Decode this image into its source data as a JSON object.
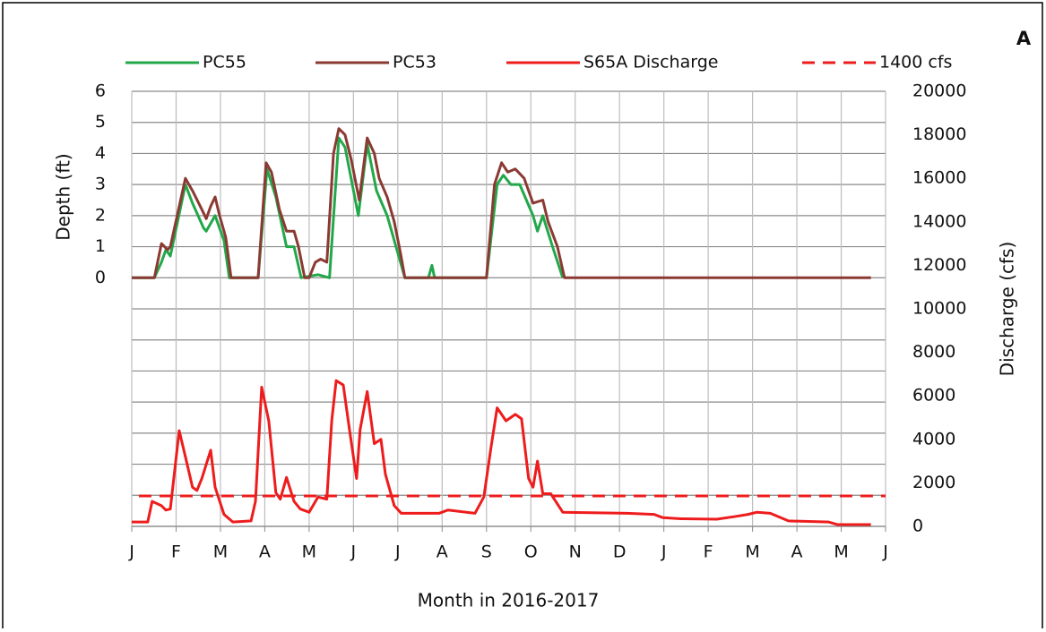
{
  "chart_data": {
    "type": "line",
    "panel_label": "A",
    "xlabel": "Month in 2016-2017",
    "ylabel": "Depth (ft)",
    "y2label": "Discharge (cfs)",
    "xlim": [
      0,
      17
    ],
    "xticks": [
      {
        "value": 0,
        "label": "J"
      },
      {
        "value": 1,
        "label": "F"
      },
      {
        "value": 2,
        "label": "M"
      },
      {
        "value": 3,
        "label": "A"
      },
      {
        "value": 4,
        "label": "M"
      },
      {
        "value": 5,
        "label": "J"
      },
      {
        "value": 6,
        "label": "J"
      },
      {
        "value": 7,
        "label": "A"
      },
      {
        "value": 8,
        "label": "S"
      },
      {
        "value": 9,
        "label": "O"
      },
      {
        "value": 10,
        "label": "N"
      },
      {
        "value": 11,
        "label": "D"
      },
      {
        "value": 12,
        "label": "J"
      },
      {
        "value": 13,
        "label": "F"
      },
      {
        "value": 14,
        "label": "M"
      },
      {
        "value": 15,
        "label": "A"
      },
      {
        "value": 16,
        "label": "M"
      },
      {
        "value": 17,
        "label": "J"
      }
    ],
    "ylim": [
      -8,
      6
    ],
    "yticks": [
      0,
      1,
      2,
      3,
      4,
      5,
      6
    ],
    "ygrid": [
      -8,
      -7,
      -6,
      -5,
      -4,
      -3,
      -2,
      -1,
      0,
      1,
      2,
      3,
      4,
      5,
      6
    ],
    "y2lim": [
      0,
      20000
    ],
    "y2ticks": [
      0,
      2000,
      4000,
      6000,
      8000,
      10000,
      12000,
      14000,
      16000,
      18000,
      20000
    ],
    "grid": true,
    "series": [
      {
        "name": "PC55",
        "color": "#22a84a",
        "x": [
          0,
          0.51,
          0.67,
          0.77,
          0.87,
          1.21,
          1.37,
          1.62,
          1.68,
          1.88,
          2.08,
          2.2,
          2.85,
          3.05,
          3.25,
          3.49,
          3.66,
          3.82,
          4.2,
          4.46,
          4.67,
          4.81,
          5.11,
          5.31,
          5.52,
          5.76,
          6.06,
          6.16,
          6.69,
          6.77,
          6.83,
          8.0,
          8.24,
          8.38,
          8.55,
          8.75,
          9.05,
          9.15,
          9.27,
          9.49,
          9.72
        ],
        "values": [
          0,
          0,
          0.5,
          0.9,
          0.7,
          3.0,
          2.4,
          1.6,
          1.5,
          2.0,
          1.2,
          0,
          0,
          3.5,
          2.6,
          1.0,
          1.0,
          0,
          0.1,
          0,
          4.5,
          4.2,
          2.0,
          4.3,
          2.8,
          2.0,
          0.5,
          0,
          0,
          0.4,
          0,
          0,
          3.0,
          3.3,
          3.0,
          3.0,
          2.0,
          1.5,
          2.0,
          1.0,
          0
        ]
      },
      {
        "name": "PC53",
        "color": "#8b3a33",
        "x": [
          0,
          0.51,
          0.67,
          0.81,
          0.87,
          1.21,
          1.37,
          1.58,
          1.68,
          1.78,
          1.88,
          1.98,
          2.12,
          2.24,
          2.85,
          3.03,
          3.15,
          3.33,
          3.49,
          3.66,
          3.76,
          3.9,
          4.0,
          4.14,
          4.26,
          4.4,
          4.55,
          4.67,
          4.81,
          4.95,
          5.13,
          5.31,
          5.47,
          5.58,
          5.76,
          5.92,
          6.06,
          6.16,
          8.0,
          8.18,
          8.34,
          8.48,
          8.65,
          8.85,
          9.05,
          9.27,
          9.39,
          9.6,
          9.76,
          16.67
        ],
        "values": [
          0,
          0,
          1.1,
          0.9,
          1.0,
          3.2,
          2.8,
          2.2,
          1.9,
          2.3,
          2.6,
          2.0,
          1.3,
          0,
          0,
          3.7,
          3.4,
          2.2,
          1.5,
          1.5,
          1.0,
          0,
          0,
          0.5,
          0.6,
          0.5,
          4.0,
          4.8,
          4.6,
          3.8,
          2.5,
          4.5,
          4.0,
          3.2,
          2.6,
          1.8,
          0.8,
          0,
          0,
          3.0,
          3.7,
          3.4,
          3.5,
          3.2,
          2.4,
          2.5,
          1.8,
          1.0,
          0,
          0
        ]
      },
      {
        "name": "S65A Discharge",
        "color": "#ee1c1c",
        "axis": "y2",
        "x": [
          0,
          0.36,
          0.46,
          0.67,
          0.77,
          0.87,
          1.07,
          1.21,
          1.37,
          1.47,
          1.58,
          1.78,
          1.88,
          2.08,
          2.28,
          2.69,
          2.79,
          2.93,
          3.09,
          3.25,
          3.35,
          3.49,
          3.66,
          3.8,
          4.0,
          4.2,
          4.4,
          4.51,
          4.61,
          4.77,
          4.91,
          5.07,
          5.15,
          5.31,
          5.47,
          5.62,
          5.72,
          5.92,
          6.08,
          6.93,
          7.13,
          7.74,
          7.94,
          8.1,
          8.24,
          8.44,
          8.65,
          8.79,
          8.95,
          9.05,
          9.15,
          9.27,
          9.45,
          9.72,
          11.17,
          11.78,
          11.98,
          12.38,
          13.19,
          13.6,
          13.9,
          14.1,
          14.4,
          14.81,
          15.72,
          15.92,
          16.67
        ],
        "values": [
          200,
          200,
          1150,
          950,
          750,
          800,
          4400,
          3200,
          1800,
          1650,
          2200,
          3500,
          1800,
          550,
          200,
          250,
          1150,
          6400,
          4850,
          1550,
          1250,
          2250,
          1150,
          800,
          650,
          1350,
          1250,
          4850,
          6700,
          6500,
          4450,
          2200,
          4450,
          6200,
          3800,
          4000,
          2400,
          950,
          600,
          600,
          750,
          600,
          1350,
          3600,
          5450,
          4850,
          5150,
          4950,
          2200,
          1800,
          3000,
          1500,
          1500,
          650,
          600,
          550,
          400,
          350,
          330,
          450,
          550,
          650,
          600,
          250,
          200,
          80,
          80
        ]
      },
      {
        "name": "1400 cfs",
        "color": "#ee1c1c",
        "axis": "y2",
        "dashed": true,
        "x": [
          0.16,
          17
        ],
        "values": [
          1400,
          1400
        ]
      }
    ]
  }
}
